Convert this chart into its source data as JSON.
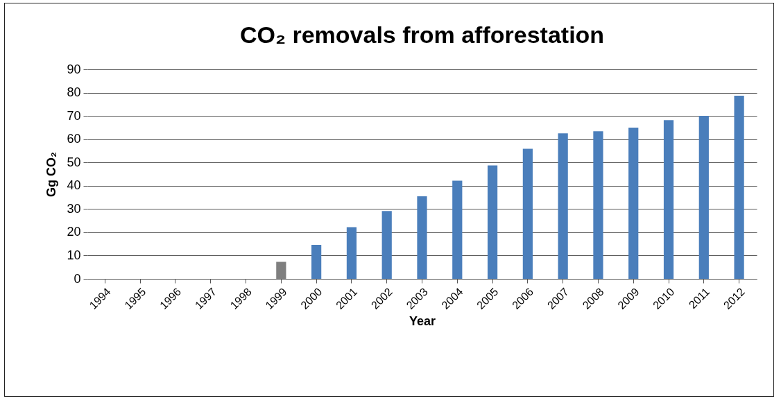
{
  "chart_data": {
    "type": "bar",
    "title": "CO₂ removals from afforestation",
    "xlabel": "Year",
    "ylabel": "Gg CO₂",
    "categories": [
      "1994",
      "1995",
      "1996",
      "1997",
      "1998",
      "1999",
      "2000",
      "2001",
      "2002",
      "2003",
      "2004",
      "2005",
      "2006",
      "2007",
      "2008",
      "2009",
      "2010",
      "2011",
      "2012"
    ],
    "values": [
      0,
      0,
      0,
      0,
      0,
      7.3,
      14.6,
      22.2,
      29.1,
      35.5,
      42.2,
      48.7,
      55.9,
      62.5,
      63.4,
      65,
      68.2,
      70,
      78.7
    ],
    "colors": [
      "#4a7ebb",
      "#4a7ebb",
      "#4a7ebb",
      "#4a7ebb",
      "#4a7ebb",
      "#7f7f7f",
      "#4a7ebb",
      "#4a7ebb",
      "#4a7ebb",
      "#4a7ebb",
      "#4a7ebb",
      "#4a7ebb",
      "#4a7ebb",
      "#4a7ebb",
      "#4a7ebb",
      "#4a7ebb",
      "#4a7ebb",
      "#4a7ebb",
      "#4a7ebb"
    ],
    "ylim": [
      0,
      90
    ],
    "yticks": [
      0,
      10,
      20,
      30,
      40,
      50,
      60,
      70,
      80,
      90
    ],
    "grid": "y"
  }
}
